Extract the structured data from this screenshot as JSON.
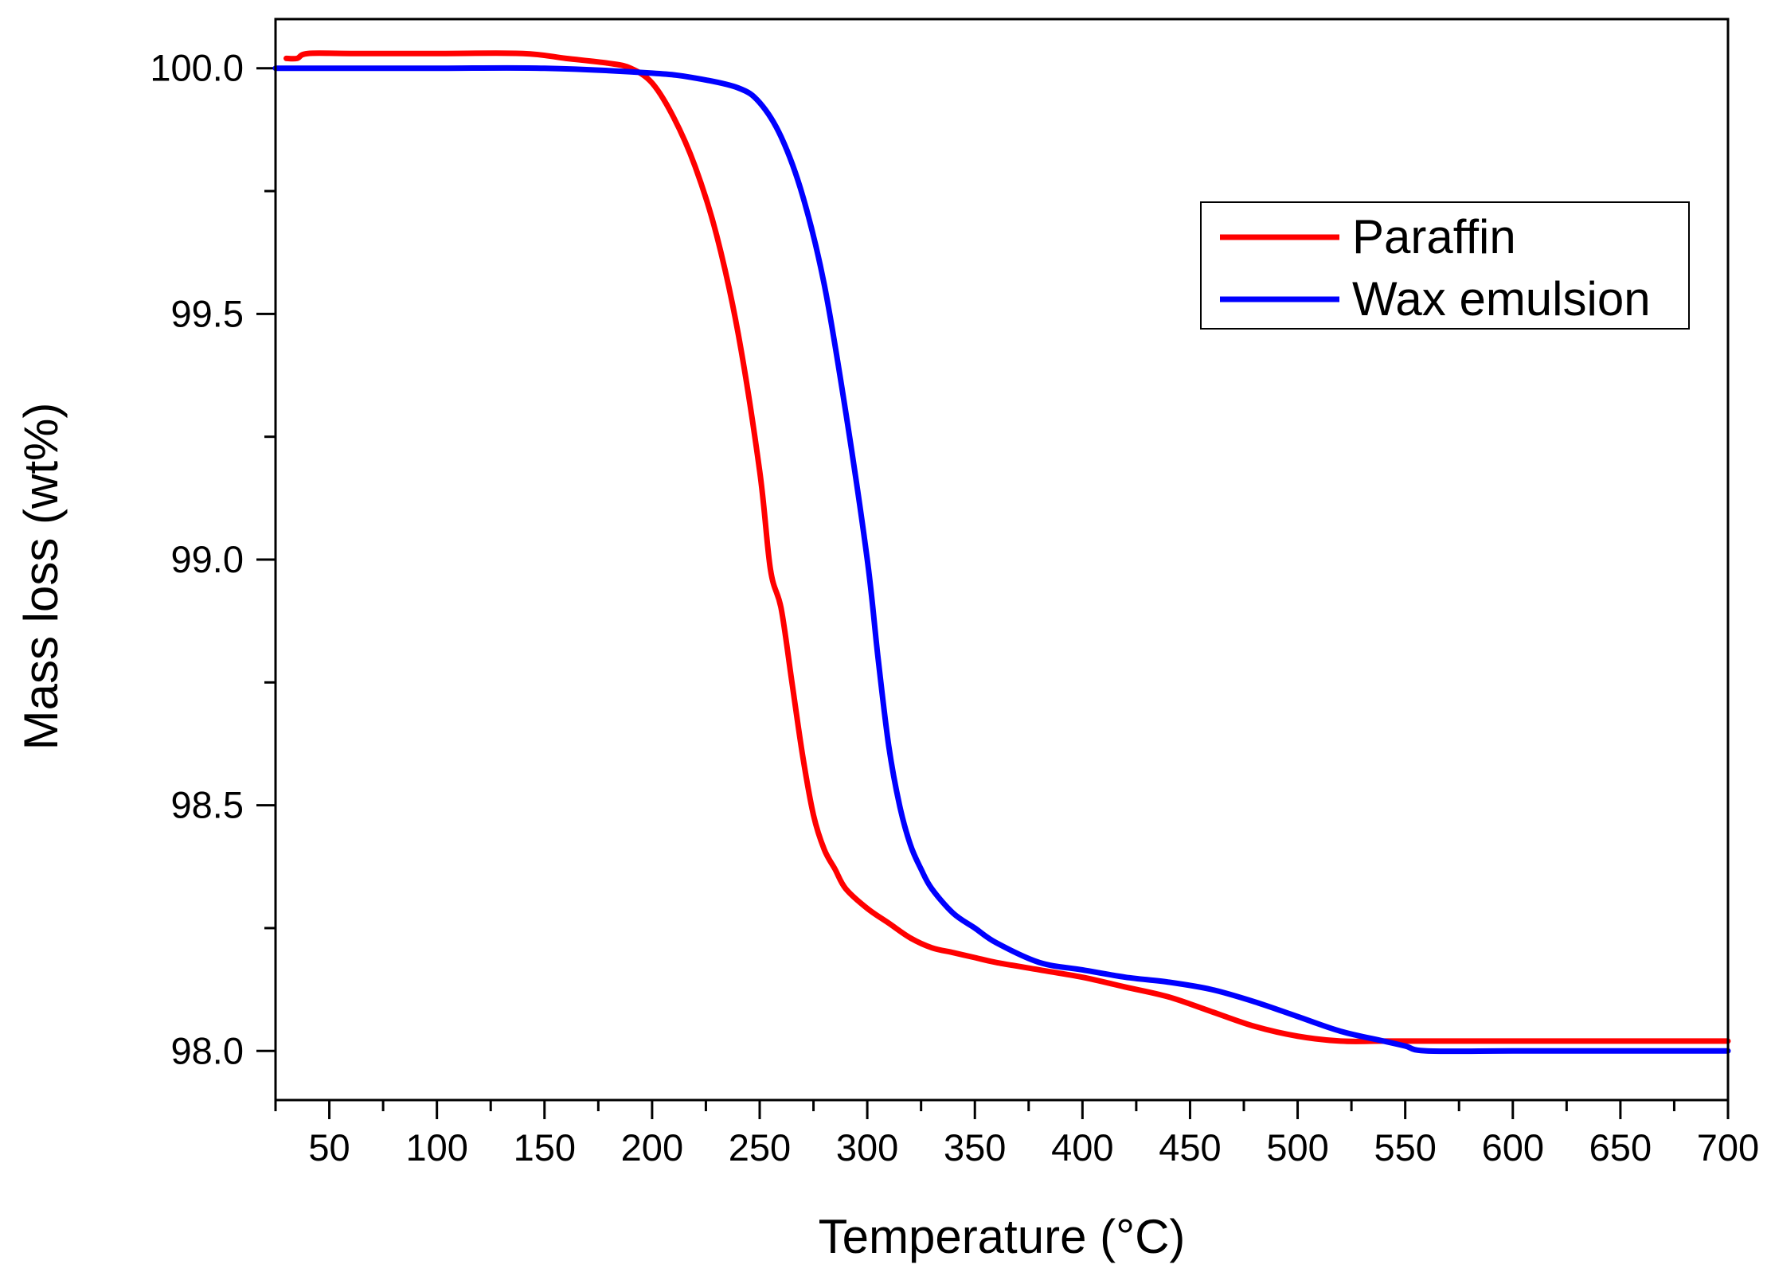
{
  "chart_data": {
    "type": "line",
    "title": "",
    "xlabel": "Temperature (°C)",
    "ylabel": "Mass loss (wt%)",
    "xlim": [
      25,
      700
    ],
    "ylim": [
      97.9,
      100.1
    ],
    "x_ticks": [
      50,
      100,
      150,
      200,
      250,
      300,
      350,
      400,
      450,
      500,
      550,
      600,
      650,
      700
    ],
    "x_tick_labels": [
      "50",
      "100",
      "150",
      "200",
      "250",
      "300",
      "350",
      "400",
      "450",
      "500",
      "550",
      "600",
      "650",
      "700"
    ],
    "x_minor_step": 25,
    "y_ticks": [
      98.0,
      98.5,
      99.0,
      99.5,
      100.0
    ],
    "y_tick_labels": [
      "98.0",
      "98.5",
      "99.0",
      "99.5",
      "100.0"
    ],
    "y_minor_step": 0.25,
    "grid": false,
    "legend_position": "top-right",
    "series": [
      {
        "name": "Paraffin",
        "color": "#ff0000",
        "x": [
          30,
          35,
          40,
          60,
          100,
          140,
          160,
          180,
          190,
          200,
          210,
          220,
          230,
          240,
          250,
          255,
          260,
          265,
          270,
          275,
          280,
          285,
          290,
          300,
          310,
          320,
          330,
          340,
          350,
          360,
          380,
          400,
          420,
          440,
          460,
          480,
          500,
          520,
          540,
          560,
          600,
          650,
          700
        ],
        "y": [
          100.02,
          100.02,
          100.03,
          100.03,
          100.03,
          100.03,
          100.02,
          100.01,
          100.0,
          99.97,
          99.9,
          99.8,
          99.66,
          99.46,
          99.18,
          98.98,
          98.9,
          98.75,
          98.6,
          98.48,
          98.41,
          98.37,
          98.33,
          98.29,
          98.26,
          98.23,
          98.21,
          98.2,
          98.19,
          98.18,
          98.165,
          98.15,
          98.13,
          98.11,
          98.08,
          98.05,
          98.03,
          98.02,
          98.02,
          98.02,
          98.02,
          98.02,
          98.02
        ]
      },
      {
        "name": "Wax emulsion",
        "color": "#0000ff",
        "x": [
          25,
          50,
          100,
          150,
          200,
          220,
          240,
          250,
          260,
          270,
          280,
          290,
          300,
          305,
          310,
          315,
          320,
          325,
          330,
          340,
          350,
          360,
          380,
          400,
          420,
          440,
          460,
          480,
          500,
          520,
          540,
          550,
          560,
          600,
          650,
          700
        ],
        "y": [
          100.0,
          100.0,
          100.0,
          100.0,
          99.99,
          99.98,
          99.96,
          99.93,
          99.86,
          99.74,
          99.56,
          99.3,
          99.0,
          98.8,
          98.62,
          98.5,
          98.42,
          98.37,
          98.33,
          98.28,
          98.25,
          98.22,
          98.18,
          98.165,
          98.15,
          98.14,
          98.125,
          98.1,
          98.07,
          98.04,
          98.02,
          98.01,
          98.0,
          98.0,
          98.0,
          98.0
        ]
      }
    ]
  }
}
